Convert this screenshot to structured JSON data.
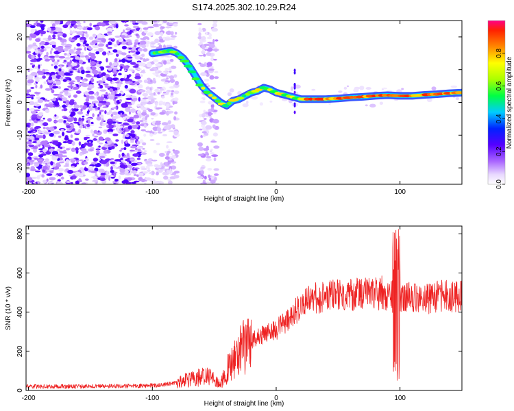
{
  "title": "S174.2025.302.10.29.R24",
  "chart_data": [
    {
      "type": "heatmap",
      "xlabel": "Height of straight line (km)",
      "ylabel": "Frequency (Hz)",
      "xlim": [
        -202,
        150
      ],
      "ylim": [
        -25,
        25
      ],
      "xticks": [
        -200,
        -100,
        0,
        100
      ],
      "yticks": [
        -20,
        -10,
        0,
        10,
        20
      ],
      "ridge": {
        "x": [
          -100,
          -95,
          -90,
          -85,
          -80,
          -75,
          -70,
          -65,
          -60,
          -55,
          -50,
          -45,
          -40,
          -35,
          -30,
          -25,
          -20,
          -15,
          -10,
          -5,
          0,
          5,
          10,
          15,
          20,
          30,
          40,
          50,
          60,
          70,
          80,
          90,
          100,
          110,
          120,
          130,
          140,
          150
        ],
        "frequency": [
          15,
          15.2,
          15.5,
          15.8,
          15,
          13.5,
          11,
          8,
          5,
          3,
          1.5,
          0,
          -1,
          0.5,
          1,
          2,
          3,
          3.5,
          4.5,
          4,
          3,
          2.5,
          2,
          1.5,
          1,
          1,
          1,
          1.2,
          1.5,
          1.7,
          2,
          2.2,
          2,
          2,
          2.3,
          2.5,
          2.8,
          3
        ]
      },
      "colorbar": {
        "label": "Normalized spectral amplitude",
        "ticks": [
          "0.0",
          "0.2",
          "0.4",
          "0.6",
          "0.8"
        ],
        "tick_values": [
          0,
          0.2,
          0.4,
          0.6,
          0.8
        ],
        "range": [
          0,
          1
        ]
      }
    },
    {
      "type": "line",
      "xlabel": "Height of straight line (km)",
      "ylabel": "SNR (10 * v/v)",
      "xlim": [
        -202,
        150
      ],
      "ylim": [
        0,
        840
      ],
      "xticks": [
        -200,
        -100,
        0,
        100
      ],
      "yticks": [
        0,
        200,
        400,
        600,
        800
      ],
      "series": [
        {
          "name": "SNR",
          "color": "#ee2222",
          "x": [
            -202,
            -180,
            -160,
            -140,
            -120,
            -100,
            -90,
            -80,
            -75,
            -70,
            -65,
            -60,
            -55,
            -50,
            -45,
            -40,
            -35,
            -30,
            -25,
            -20,
            -15,
            -10,
            -5,
            0,
            5,
            10,
            15,
            20,
            25,
            30,
            40,
            50,
            60,
            70,
            80,
            85,
            90,
            95,
            98,
            100,
            105,
            110,
            120,
            130,
            140,
            150
          ],
          "y": [
            20,
            20,
            20,
            22,
            22,
            25,
            30,
            40,
            50,
            55,
            60,
            70,
            80,
            50,
            30,
            100,
            150,
            200,
            220,
            250,
            270,
            290,
            300,
            310,
            340,
            370,
            400,
            420,
            450,
            470,
            480,
            490,
            485,
            495,
            490,
            500,
            480,
            480,
            600,
            470,
            480,
            480,
            470,
            480,
            480,
            480
          ]
        }
      ]
    }
  ]
}
